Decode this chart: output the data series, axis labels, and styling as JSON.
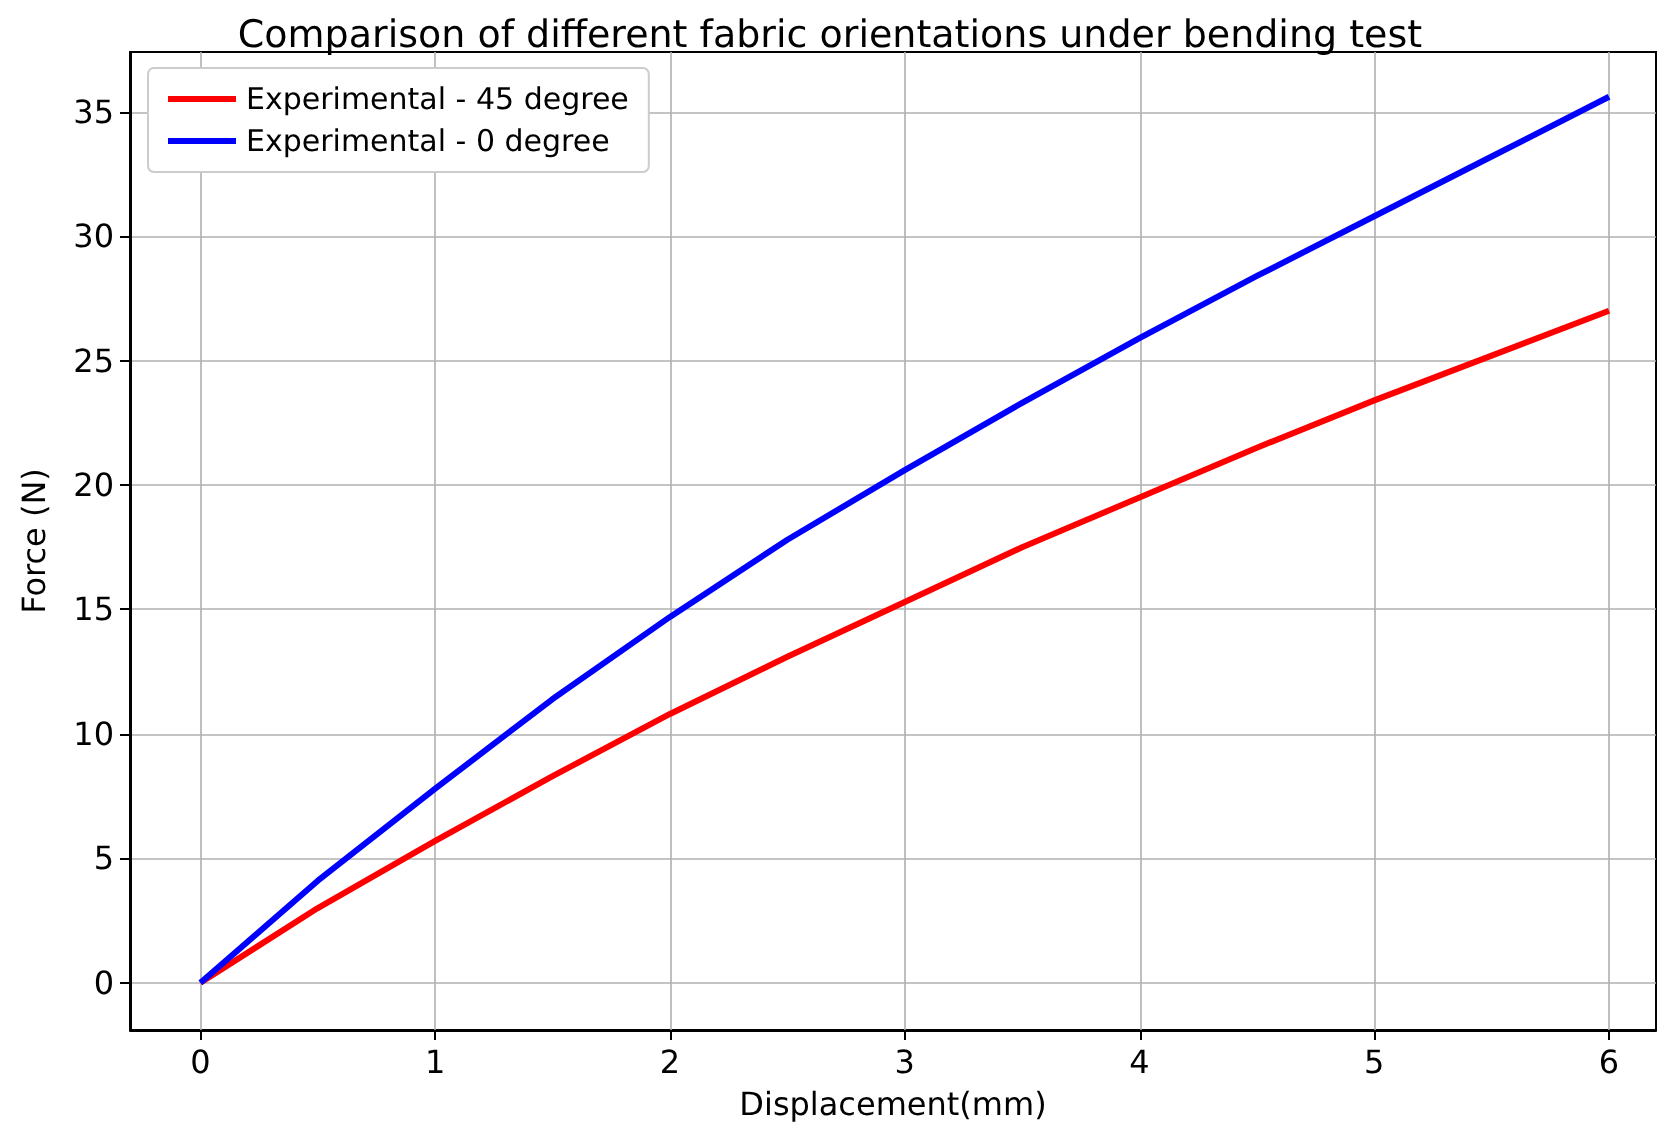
{
  "chart_data": {
    "type": "line",
    "title": "Comparison of different fabric orientations under bending test",
    "xlabel": "Displacement(mm)",
    "ylabel": "Force (N)",
    "x": [
      0,
      0.5,
      1,
      1.5,
      2,
      2.5,
      3,
      3.5,
      4,
      4.5,
      5,
      5.5,
      6
    ],
    "series": [
      {
        "name": "Experimental - 45 degree",
        "color": "#ff0000",
        "values": [
          0,
          3.0,
          5.7,
          8.3,
          10.8,
          13.1,
          15.3,
          17.5,
          19.5,
          21.5,
          23.4,
          25.2,
          27.0
        ]
      },
      {
        "name": "Experimental - 0 degree",
        "color": "#0000ff",
        "values": [
          0,
          4.1,
          7.8,
          11.4,
          14.7,
          17.8,
          20.6,
          23.3,
          25.9,
          28.4,
          30.8,
          33.2,
          35.6
        ]
      }
    ],
    "xlim": [
      -0.3,
      6.2
    ],
    "ylim": [
      -1.9,
      37.4
    ],
    "xticks": [
      0,
      1,
      2,
      3,
      4,
      5,
      6
    ],
    "yticks": [
      0,
      5,
      10,
      15,
      20,
      25,
      30,
      35
    ],
    "grid": true,
    "legend": "top left",
    "marker": "none",
    "line_style": "solid"
  }
}
